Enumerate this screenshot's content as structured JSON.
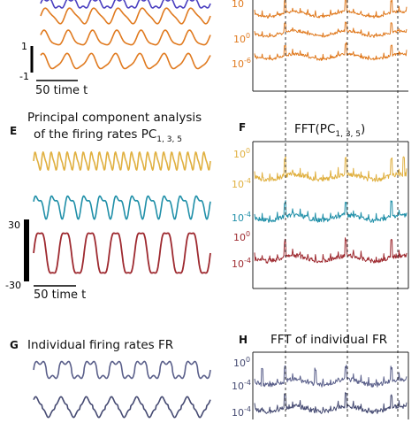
{
  "colors": {
    "orange": "#e07a1f",
    "purple": "#4a3fc0",
    "gold": "#e0b040",
    "teal": "#1f8fa8",
    "darkred": "#9e2a30",
    "slate": "#5a5f8a",
    "slate_dark": "#454a72"
  },
  "scalebars": {
    "top_hi": "1",
    "top_lo": "-1",
    "top_time": "50 time t",
    "e_hi": "30",
    "e_lo": "-30",
    "e_time": "50 time t"
  },
  "panels": {
    "E": {
      "letter": "E",
      "title_line1": "Principal component analysis",
      "title_line2_text": "of the firing rates PC",
      "title_line2_sub": "1, 3, 5"
    },
    "F": {
      "letter": "F",
      "title_prefix": "FFT(PC",
      "title_sub": "1, 3, 5",
      "title_suffix": ")"
    },
    "G": {
      "letter": "G",
      "title": "Individual firing rates FR"
    },
    "H": {
      "letter": "H",
      "title": "FFT of individual FR"
    }
  },
  "chart_data": [
    {
      "type": "line",
      "panel": "top-left",
      "series": [
        {
          "color": "purple",
          "cycles": 7
        },
        {
          "color": "orange",
          "cycles": 7
        },
        {
          "color": "orange",
          "cycles": 7
        },
        {
          "color": "orange",
          "cycles": 7
        }
      ]
    },
    {
      "type": "line",
      "panel": "top-right",
      "y_ticks": [
        "10",
        "0",
        "-6"
      ],
      "y_tick_labels": [
        "10⁰",
        "10⁻⁶"
      ],
      "series_color": "orange"
    },
    {
      "type": "line",
      "panel": "E",
      "series": [
        {
          "color": "gold",
          "cycles": 22
        },
        {
          "color": "teal",
          "cycles": 11
        },
        {
          "color": "darkred",
          "cycles": 7
        }
      ]
    },
    {
      "type": "line",
      "panel": "F",
      "y_tick_labels": [
        "10⁰",
        "10⁻⁴",
        "10⁻⁴",
        "10⁰",
        "10⁻⁴"
      ],
      "series": [
        {
          "color": "gold"
        },
        {
          "color": "teal"
        },
        {
          "color": "darkred"
        }
      ]
    },
    {
      "type": "line",
      "panel": "G",
      "series": [
        {
          "color": "slate"
        },
        {
          "color": "slate_dark"
        }
      ]
    },
    {
      "type": "line",
      "panel": "H",
      "y_tick_labels": [
        "10⁰",
        "10⁻⁴",
        "10⁻⁴"
      ],
      "series_color": "slate"
    }
  ]
}
